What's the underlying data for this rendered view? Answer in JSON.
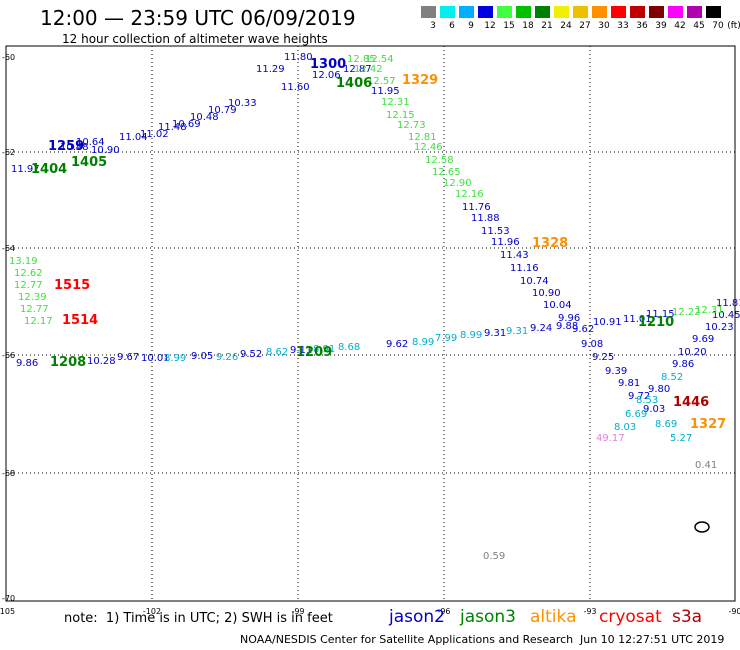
{
  "header": {
    "title": "12:00 — 23:59 UTC 06/09/2019",
    "subtitle": "12 hour collection of altimeter wave heights"
  },
  "legend": {
    "unit": "(ft)",
    "bins": [
      {
        "label": "3",
        "color": "#808080"
      },
      {
        "label": "6",
        "color": "#00f0f0"
      },
      {
        "label": "9",
        "color": "#00b0ff"
      },
      {
        "label": "12",
        "color": "#0000e0"
      },
      {
        "label": "15",
        "color": "#40ff40"
      },
      {
        "label": "18",
        "color": "#00c000"
      },
      {
        "label": "21",
        "color": "#008000"
      },
      {
        "label": "24",
        "color": "#f0f000"
      },
      {
        "label": "27",
        "color": "#f0c000"
      },
      {
        "label": "30",
        "color": "#ff9000"
      },
      {
        "label": "33",
        "color": "#ff0000"
      },
      {
        "label": "36",
        "color": "#c00000"
      },
      {
        "label": "39",
        "color": "#800000"
      },
      {
        "label": "42",
        "color": "#ff00ff"
      },
      {
        "label": "45",
        "color": "#b000b0"
      },
      {
        "label": "70",
        "color": "#000000"
      }
    ]
  },
  "map": {
    "lat_labels": [
      "-60",
      "-62",
      "-64",
      "-66",
      "-68",
      "-70"
    ],
    "lon_labels": [
      "-105",
      "-102",
      "-99",
      "-96",
      "-93",
      "-90"
    ],
    "colors": {
      "jason2": "#0000c8",
      "jason3": "#008000",
      "altika": "#ff9000",
      "cryosat": "#ff0000",
      "s3a": "#b00000",
      "gray": "#808080",
      "light_green": "#40e040",
      "cyan": "#00b0d0",
      "pink": "#e080e0"
    },
    "time_labels": [
      {
        "text": "1300",
        "sat": "jason2"
      },
      {
        "text": "1406",
        "sat": "jason3"
      },
      {
        "text": "1329",
        "sat": "altika"
      },
      {
        "text": "1259",
        "sat": "jason2"
      },
      {
        "text": "1404",
        "sat": "jason3"
      },
      {
        "text": "1405",
        "sat": "jason3"
      },
      {
        "text": "1328",
        "sat": "altika"
      },
      {
        "text": "1515",
        "sat": "cryosat"
      },
      {
        "text": "1514",
        "sat": "cryosat"
      },
      {
        "text": "1209",
        "sat": "jason3"
      },
      {
        "text": "1208",
        "sat": "jason3"
      },
      {
        "text": "1210",
        "sat": "jason3"
      },
      {
        "text": "1446",
        "sat": "s3a"
      },
      {
        "text": "1327",
        "sat": "altika"
      }
    ],
    "wave_heights": [
      {
        "text": "11.80",
        "c": "jason2"
      },
      {
        "text": "11.29",
        "c": "jason2"
      },
      {
        "text": "11.60",
        "c": "jason2"
      },
      {
        "text": "12.06",
        "c": "jason2"
      },
      {
        "text": "12.87",
        "c": "jason2"
      },
      {
        "text": "11.95",
        "c": "jason2"
      },
      {
        "text": "12.85",
        "c": "light_green"
      },
      {
        "text": "12.54",
        "c": "light_green"
      },
      {
        "text": "12.42",
        "c": "light_green"
      },
      {
        "text": "12.57",
        "c": "light_green"
      },
      {
        "text": "12.31",
        "c": "light_green"
      },
      {
        "text": "12.15",
        "c": "light_green"
      },
      {
        "text": "12.73",
        "c": "light_green"
      },
      {
        "text": "12.81",
        "c": "light_green"
      },
      {
        "text": "12.46",
        "c": "light_green"
      },
      {
        "text": "12.58",
        "c": "light_green"
      },
      {
        "text": "12.65",
        "c": "light_green"
      },
      {
        "text": "12.90",
        "c": "light_green"
      },
      {
        "text": "12.16",
        "c": "light_green"
      },
      {
        "text": "11.76",
        "c": "jason2"
      },
      {
        "text": "11.88",
        "c": "jason2"
      },
      {
        "text": "11.53",
        "c": "jason2"
      },
      {
        "text": "11.96",
        "c": "jason2"
      },
      {
        "text": "11.43",
        "c": "jason2"
      },
      {
        "text": "11.16",
        "c": "jason2"
      },
      {
        "text": "10.74",
        "c": "jason2"
      },
      {
        "text": "10.90",
        "c": "jason2"
      },
      {
        "text": "10.04",
        "c": "jason2"
      },
      {
        "text": "9.96",
        "c": "jason2"
      },
      {
        "text": "9.62",
        "c": "jason2"
      },
      {
        "text": "9.08",
        "c": "jason2"
      },
      {
        "text": "9.25",
        "c": "jason2"
      },
      {
        "text": "9.39",
        "c": "jason2"
      },
      {
        "text": "9.81",
        "c": "jason2"
      },
      {
        "text": "9.72",
        "c": "jason2"
      },
      {
        "text": "9.80",
        "c": "jason2"
      },
      {
        "text": "9.03",
        "c": "jason2"
      },
      {
        "text": "9.86",
        "c": "jason2"
      },
      {
        "text": "10.20",
        "c": "jason2"
      },
      {
        "text": "9.69",
        "c": "jason2"
      },
      {
        "text": "10.23",
        "c": "jason2"
      },
      {
        "text": "10.45",
        "c": "jason2"
      },
      {
        "text": "10.33",
        "c": "jason2"
      },
      {
        "text": "10.79",
        "c": "jason2"
      },
      {
        "text": "10.48",
        "c": "jason2"
      },
      {
        "text": "10.69",
        "c": "jason2"
      },
      {
        "text": "11.48",
        "c": "jason2"
      },
      {
        "text": "11.02",
        "c": "jason2"
      },
      {
        "text": "11.04",
        "c": "jason2"
      },
      {
        "text": "10.90",
        "c": "jason2"
      },
      {
        "text": "10.64",
        "c": "jason2"
      },
      {
        "text": "10.48",
        "c": "jason2"
      },
      {
        "text": "11.97",
        "c": "jason2"
      },
      {
        "text": "13.19",
        "c": "light_green"
      },
      {
        "text": "12.62",
        "c": "light_green"
      },
      {
        "text": "12.77",
        "c": "light_green"
      },
      {
        "text": "12.39",
        "c": "light_green"
      },
      {
        "text": "12.77",
        "c": "light_green"
      },
      {
        "text": "12.17",
        "c": "light_green"
      },
      {
        "text": "9.86",
        "c": "jason2"
      },
      {
        "text": "10.28",
        "c": "jason2"
      },
      {
        "text": "9.67",
        "c": "jason2"
      },
      {
        "text": "10.01",
        "c": "jason2"
      },
      {
        "text": "8.99",
        "c": "cyan"
      },
      {
        "text": "9.05",
        "c": "jason2"
      },
      {
        "text": "9.26",
        "c": "cyan"
      },
      {
        "text": "9.52",
        "c": "jason2"
      },
      {
        "text": "8.62",
        "c": "cyan"
      },
      {
        "text": "9.11",
        "c": "jason2"
      },
      {
        "text": "8.91",
        "c": "cyan"
      },
      {
        "text": "8.68",
        "c": "cyan"
      },
      {
        "text": "9.62",
        "c": "jason2"
      },
      {
        "text": "8.99",
        "c": "cyan"
      },
      {
        "text": "7.99",
        "c": "cyan"
      },
      {
        "text": "8.99",
        "c": "cyan"
      },
      {
        "text": "9.31",
        "c": "jason2"
      },
      {
        "text": "9.31",
        "c": "cyan"
      },
      {
        "text": "9.24",
        "c": "jason2"
      },
      {
        "text": "9.88",
        "c": "jason2"
      },
      {
        "text": "10.91",
        "c": "jason2"
      },
      {
        "text": "11.01",
        "c": "jason2"
      },
      {
        "text": "11.15",
        "c": "jason2"
      },
      {
        "text": "12.22",
        "c": "light_green"
      },
      {
        "text": "12.31",
        "c": "light_green"
      },
      {
        "text": "11.81",
        "c": "jason2"
      },
      {
        "text": "8.52",
        "c": "cyan"
      },
      {
        "text": "8.53",
        "c": "cyan"
      },
      {
        "text": "6.69",
        "c": "cyan"
      },
      {
        "text": "8.03",
        "c": "cyan"
      },
      {
        "text": "8.69",
        "c": "cyan"
      },
      {
        "text": "5.27",
        "c": "cyan"
      },
      {
        "text": "49.17",
        "c": "pink"
      },
      {
        "text": "0.41",
        "c": "gray"
      },
      {
        "text": "0.59",
        "c": "gray"
      }
    ]
  },
  "footer": {
    "notes": "note:  1) Time is in UTC; 2) SWH is in feet",
    "satellites": [
      {
        "name": "jason2",
        "color": "#0000c8"
      },
      {
        "name": "jason3",
        "color": "#008000"
      },
      {
        "name": "altika",
        "color": "#ff9000"
      },
      {
        "name": "cryosat",
        "color": "#ff0000"
      },
      {
        "name": "s3a",
        "color": "#b00000"
      }
    ],
    "credit": "NOAA/NESDIS Center for Satellite Applications and Research",
    "timestamp": "Jun 10 12:27:51 UTC 2019"
  }
}
